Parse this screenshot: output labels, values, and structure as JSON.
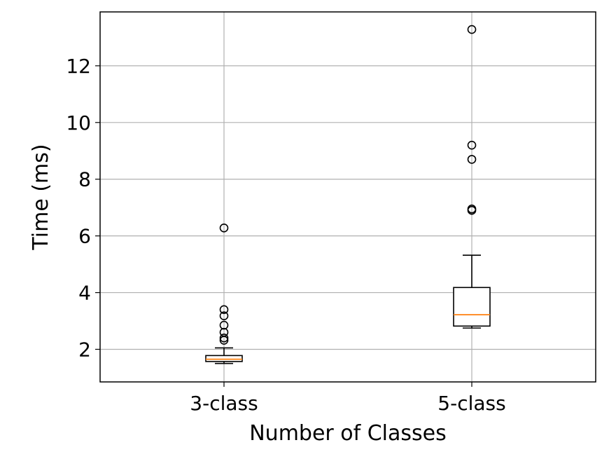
{
  "chart_data": {
    "type": "box",
    "xlabel": "Number of Classes",
    "ylabel": "Time (ms)",
    "categories": [
      "3-class",
      "5-class"
    ],
    "ylim": [
      0.85,
      13.9
    ],
    "yticks": [
      2,
      4,
      6,
      8,
      10,
      12
    ],
    "grid": true,
    "boxes": [
      {
        "category": "3-class",
        "whisker_low": 1.5,
        "q1": 1.57,
        "median": 1.65,
        "q3": 1.78,
        "whisker_high": 2.05,
        "outliers": [
          2.32,
          2.4,
          2.6,
          2.85,
          3.18,
          3.4,
          6.28
        ]
      },
      {
        "category": "5-class",
        "whisker_low": 2.75,
        "q1": 2.82,
        "median": 3.22,
        "q3": 4.18,
        "whisker_high": 5.32,
        "outliers": [
          6.9,
          6.95,
          8.7,
          9.2,
          13.28
        ]
      }
    ]
  },
  "colors": {
    "box": "#000000",
    "median": "#ff7f0e",
    "grid": "#b0b0b0",
    "background": "#ffffff"
  }
}
